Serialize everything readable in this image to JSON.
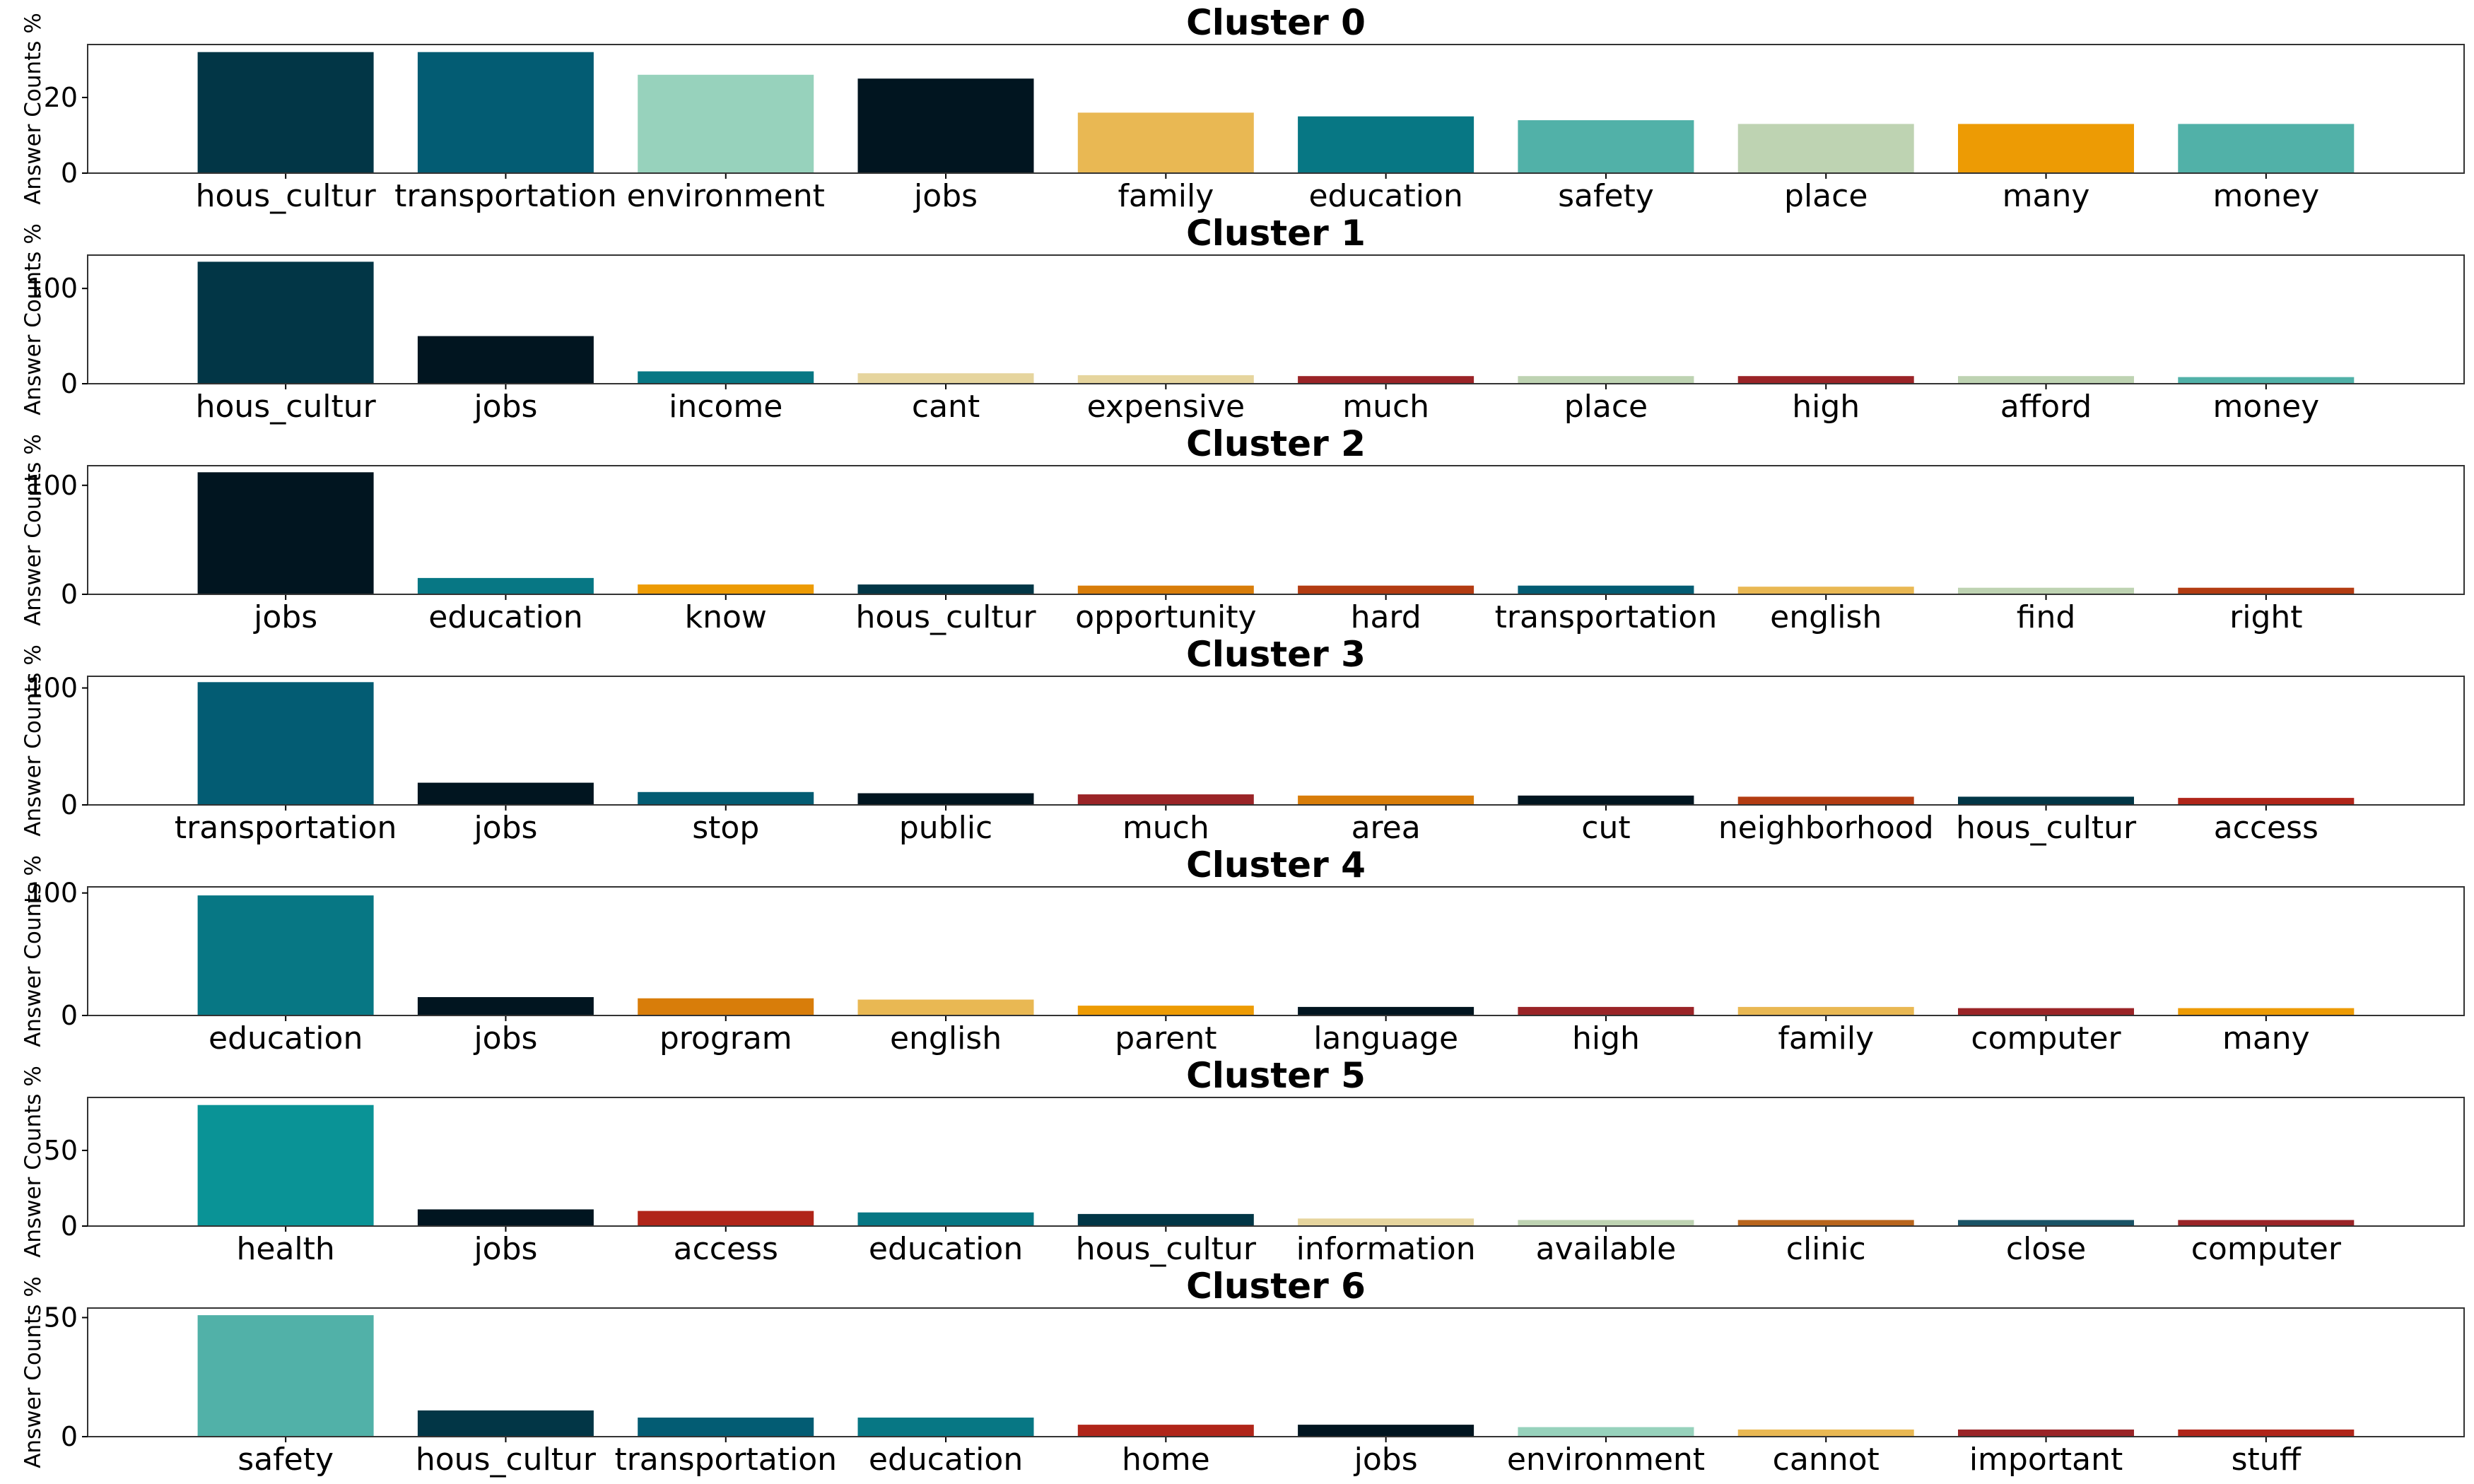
{
  "chart_data": [
    {
      "type": "bar",
      "title": "Cluster 0",
      "ylabel": "Answer Counts %",
      "ylim": [
        0,
        34
      ],
      "yticks": [
        0,
        20
      ],
      "categories": [
        "hous_cultur",
        "transportation",
        "environment",
        "jobs",
        "family",
        "education",
        "safety",
        "place",
        "many",
        "money"
      ],
      "values": [
        32,
        32,
        26,
        25,
        16,
        15,
        14,
        13,
        13,
        13
      ],
      "colors": [
        "#023646",
        "#035c73",
        "#97d2bc",
        "#011520",
        "#e9b853",
        "#077784",
        "#51b1a8",
        "#bed3b2",
        "#ed9b04",
        "#51b1a8"
      ]
    },
    {
      "type": "bar",
      "title": "Cluster 1",
      "ylabel": "Answer Counts %",
      "ylim": [
        0,
        135
      ],
      "yticks": [
        0,
        100
      ],
      "categories": [
        "hous_cultur",
        "jobs",
        "income",
        "cant",
        "expensive",
        "much",
        "place",
        "high",
        "afford",
        "money"
      ],
      "values": [
        128,
        50,
        13,
        11,
        9,
        8,
        8,
        8,
        8,
        7
      ],
      "colors": [
        "#023646",
        "#011520",
        "#077784",
        "#e6d59e",
        "#e6d59e",
        "#9a2427",
        "#bed3b2",
        "#9a2427",
        "#bed3b2",
        "#51b1a8"
      ]
    },
    {
      "type": "bar",
      "title": "Cluster 2",
      "ylabel": "Answer Counts %",
      "ylim": [
        0,
        118
      ],
      "yticks": [
        0,
        100
      ],
      "categories": [
        "jobs",
        "education",
        "know",
        "hous_cultur",
        "opportunity",
        "hard",
        "transportation",
        "english",
        "find",
        "right"
      ],
      "values": [
        112,
        15,
        9,
        9,
        8,
        8,
        8,
        7,
        6,
        6
      ],
      "colors": [
        "#011520",
        "#077784",
        "#ed9b04",
        "#023646",
        "#d87d0a",
        "#b33c12",
        "#035c73",
        "#e9b853",
        "#bed3b2",
        "#b33c12"
      ]
    },
    {
      "type": "bar",
      "title": "Cluster 3",
      "ylabel": "Answer Counts %",
      "ylim": [
        0,
        110
      ],
      "yticks": [
        0,
        100
      ],
      "categories": [
        "transportation",
        "jobs",
        "stop",
        "public",
        "much",
        "area",
        "cut",
        "neighborhood",
        "hous_cultur",
        "access"
      ],
      "values": [
        105,
        19,
        11,
        10,
        9,
        8,
        8,
        7,
        7,
        6
      ],
      "colors": [
        "#035c73",
        "#011520",
        "#035c73",
        "#011520",
        "#9a2427",
        "#d87d0a",
        "#011520",
        "#b33c12",
        "#023646",
        "#b02519"
      ]
    },
    {
      "type": "bar",
      "title": "Cluster 4",
      "ylabel": "Answer Counts %",
      "ylim": [
        0,
        105
      ],
      "yticks": [
        0,
        100
      ],
      "categories": [
        "education",
        "jobs",
        "program",
        "english",
        "parent",
        "language",
        "high",
        "family",
        "computer",
        "many"
      ],
      "values": [
        98,
        15,
        14,
        13,
        8,
        7,
        7,
        7,
        6,
        6
      ],
      "colors": [
        "#077784",
        "#011520",
        "#d87d0a",
        "#e9b853",
        "#ed9b04",
        "#011520",
        "#9a2427",
        "#e9b853",
        "#9a2427",
        "#ed9b04"
      ]
    },
    {
      "type": "bar",
      "title": "Cluster 5",
      "ylabel": "Answer Counts %",
      "ylim": [
        0,
        85
      ],
      "yticks": [
        0,
        50
      ],
      "categories": [
        "health",
        "jobs",
        "access",
        "education",
        "hous_cultur",
        "information",
        "available",
        "clinic",
        "close",
        "computer"
      ],
      "values": [
        80,
        11,
        10,
        9,
        8,
        5,
        4,
        4,
        4,
        4
      ],
      "colors": [
        "#0a9396",
        "#011520",
        "#b02519",
        "#077784",
        "#023646",
        "#e6d59e",
        "#bed3b2",
        "#b8651c",
        "#1a5366",
        "#9a2427"
      ]
    },
    {
      "type": "bar",
      "title": "Cluster 6",
      "ylabel": "Answer Counts %",
      "ylim": [
        0,
        54
      ],
      "yticks": [
        0,
        50
      ],
      "categories": [
        "safety",
        "hous_cultur",
        "transportation",
        "education",
        "home",
        "jobs",
        "environment",
        "cannot",
        "important",
        "stuff"
      ],
      "values": [
        51,
        11,
        8,
        8,
        5,
        5,
        4,
        3,
        3,
        3
      ],
      "colors": [
        "#51b1a8",
        "#023646",
        "#035c73",
        "#077784",
        "#b02519",
        "#011520",
        "#97d2bc",
        "#e9b853",
        "#9a2427",
        "#b02519"
      ]
    }
  ]
}
